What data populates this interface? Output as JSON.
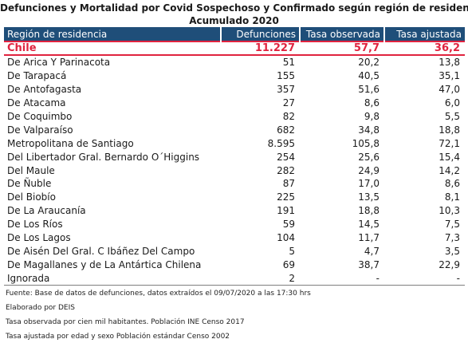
{
  "title": {
    "line1": "Defunciones y Mortalidad por Covid Sospechoso y Confirmado  según región de residencia",
    "line2": "Acumulado 2020"
  },
  "table": {
    "headers": [
      "Región de residencia",
      "Defunciones",
      "Tasa observada",
      "Tasa ajustada"
    ],
    "total": {
      "name": "Chile",
      "defunciones": "11.227",
      "tasa_observada": "57,7",
      "tasa_ajustada": "36,2"
    },
    "rows": [
      {
        "name": "De Arica Y Parinacota",
        "defunciones": "51",
        "tasa_observada": "20,2",
        "tasa_ajustada": "13,8"
      },
      {
        "name": "De Tarapacá",
        "defunciones": "155",
        "tasa_observada": "40,5",
        "tasa_ajustada": "35,1"
      },
      {
        "name": "De Antofagasta",
        "defunciones": "357",
        "tasa_observada": "51,6",
        "tasa_ajustada": "47,0"
      },
      {
        "name": "De Atacama",
        "defunciones": "27",
        "tasa_observada": "8,6",
        "tasa_ajustada": "6,0"
      },
      {
        "name": "De Coquimbo",
        "defunciones": "82",
        "tasa_observada": "9,8",
        "tasa_ajustada": "5,5"
      },
      {
        "name": "De Valparaíso",
        "defunciones": "682",
        "tasa_observada": "34,8",
        "tasa_ajustada": "18,8"
      },
      {
        "name": "Metropolitana de Santiago",
        "defunciones": "8.595",
        "tasa_observada": "105,8",
        "tasa_ajustada": "72,1"
      },
      {
        "name": "Del Libertador Gral. Bernardo O´Higgins",
        "defunciones": "254",
        "tasa_observada": "25,6",
        "tasa_ajustada": "15,4"
      },
      {
        "name": "Del Maule",
        "defunciones": "282",
        "tasa_observada": "24,9",
        "tasa_ajustada": "14,2"
      },
      {
        "name": "De Ñuble",
        "defunciones": "87",
        "tasa_observada": "17,0",
        "tasa_ajustada": "8,6"
      },
      {
        "name": "Del Biobío",
        "defunciones": "225",
        "tasa_observada": "13,5",
        "tasa_ajustada": "8,1"
      },
      {
        "name": "De La Araucanía",
        "defunciones": "191",
        "tasa_observada": "18,8",
        "tasa_ajustada": "10,3"
      },
      {
        "name": "De Los Ríos",
        "defunciones": "59",
        "tasa_observada": "14,5",
        "tasa_ajustada": "7,5"
      },
      {
        "name": "De Los Lagos",
        "defunciones": "104",
        "tasa_observada": "11,7",
        "tasa_ajustada": "7,3"
      },
      {
        "name": "De Aisén Del Gral. C Ibáñez Del Campo",
        "defunciones": "5",
        "tasa_observada": "4,7",
        "tasa_ajustada": "3,5"
      },
      {
        "name": "De Magallanes y de La Antártica Chilena",
        "defunciones": "69",
        "tasa_observada": "38,7",
        "tasa_ajustada": "22,9"
      },
      {
        "name": "Ignorada",
        "defunciones": "2",
        "tasa_observada": "-",
        "tasa_ajustada": "-"
      }
    ]
  },
  "footnotes": [
    "Fuente: Base de datos de defunciones, datos extraídos el 09/07/2020 a las 17:30 hrs",
    "Elaborado por DEIS",
    "Tasa observada por cien mil habitantes. Población INE Censo 2017",
    "Tasa ajustada por edad y sexo Población estándar Censo 2002"
  ],
  "colors": {
    "header_bg": "#1f4e79",
    "header_text": "#ffffff",
    "total_accent": "#e0233f"
  }
}
